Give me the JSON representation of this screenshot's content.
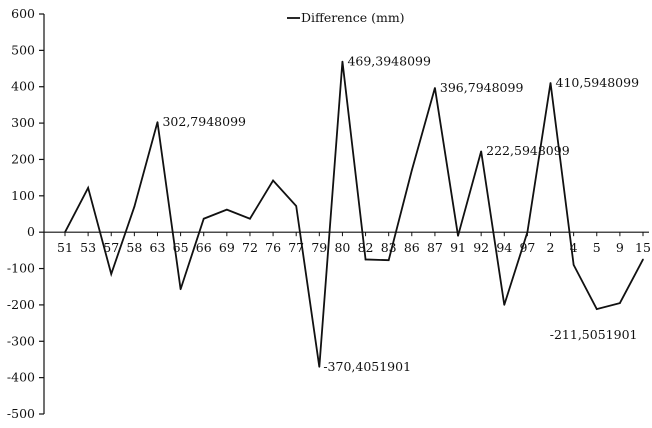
{
  "chart_data": {
    "type": "line",
    "title": "",
    "xlabel": "",
    "ylabel": "",
    "ylim": [
      -500,
      600
    ],
    "ytick_step": 100,
    "grid": false,
    "legend": {
      "position": "top-center"
    },
    "line_color": "#111111",
    "categories": [
      "51",
      "53",
      "57",
      "58",
      "63",
      "65",
      "66",
      "69",
      "72",
      "76",
      "77",
      "79",
      "80",
      "82",
      "83",
      "86",
      "87",
      "91",
      "92",
      "94",
      "97",
      "2",
      "4",
      "5",
      "9",
      "15"
    ],
    "series": [
      {
        "name": "Difference (mm)",
        "values": [
          0,
          122,
          -115,
          70,
          302.7948099,
          -157,
          37,
          62,
          37,
          142,
          72,
          -370.4051901,
          469.3948099,
          -75,
          -77,
          170,
          396.7948099,
          -10,
          222.5948099,
          -200,
          0,
          410.5948099,
          -90,
          -211.5051901,
          -195,
          -75
        ]
      }
    ],
    "annotations": [
      {
        "index": 4,
        "text": "302,7948099"
      },
      {
        "index": 11,
        "text": "-370,4051901"
      },
      {
        "index": 12,
        "text": "469,3948099"
      },
      {
        "index": 16,
        "text": "396,7948099"
      },
      {
        "index": 18,
        "text": "222,5948099"
      },
      {
        "index": 21,
        "text": "410,5948099"
      },
      {
        "index": 23,
        "text": "-211,5051901"
      }
    ]
  }
}
